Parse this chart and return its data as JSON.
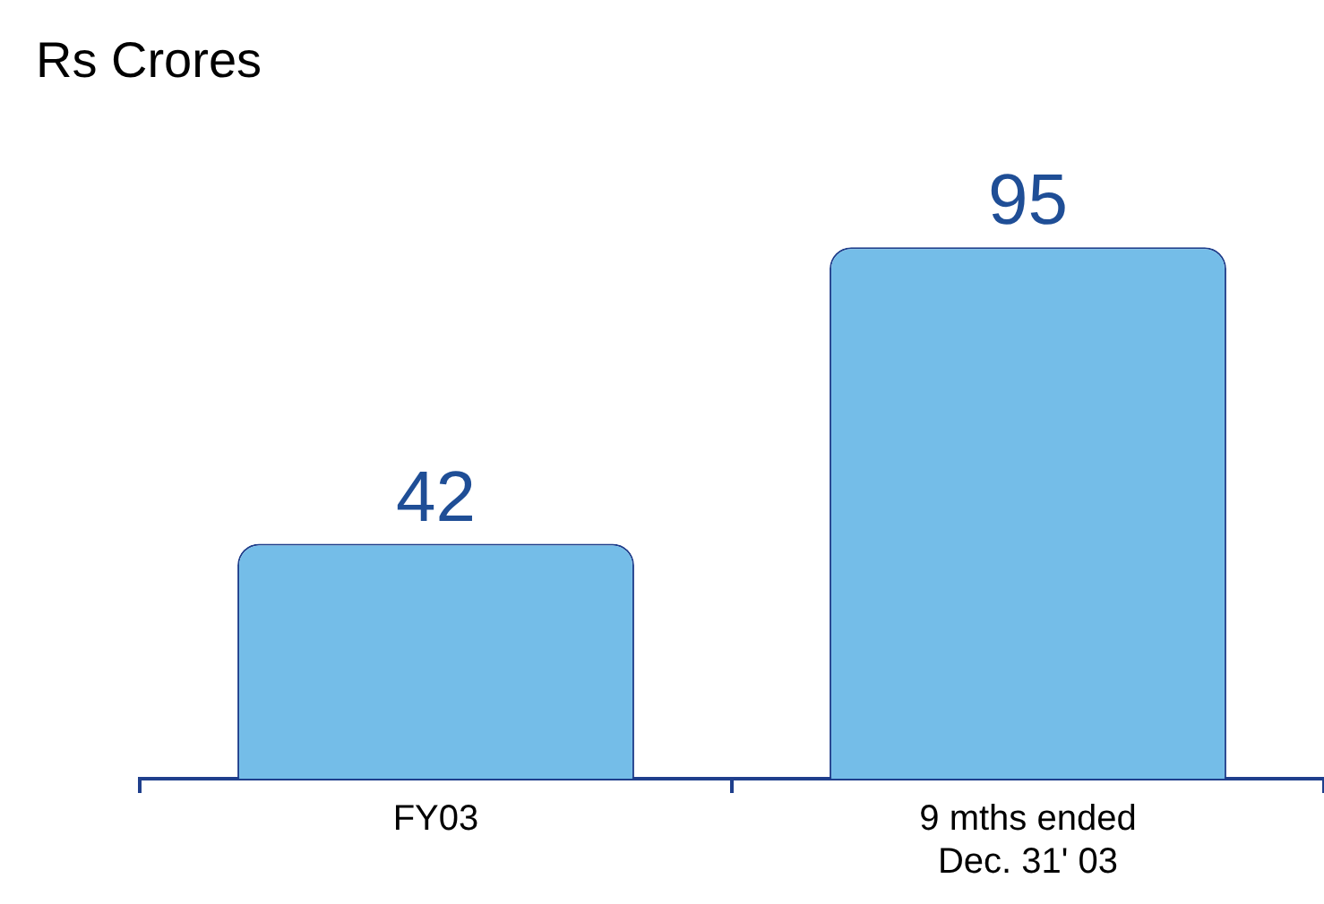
{
  "chart_data": {
    "type": "bar",
    "ylabel": "Rs Crores",
    "categories": [
      "FY03",
      "9 mths ended Dec. 31' 03"
    ],
    "values": [
      42,
      95
    ],
    "color": "#74bde8",
    "data_labels": true,
    "grid": false,
    "legend": false
  }
}
